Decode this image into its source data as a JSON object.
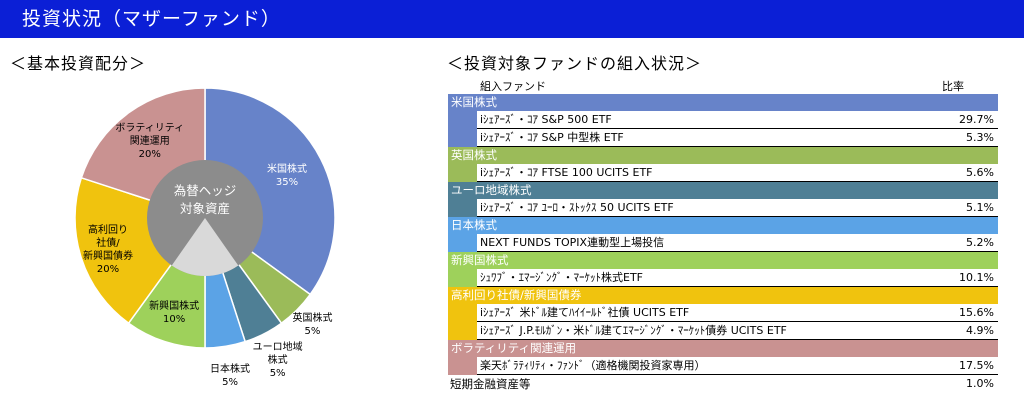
{
  "header": {
    "title": "投資状況（マザーファンド）"
  },
  "left": {
    "title": "＜基本投資配分＞"
  },
  "right": {
    "title": "＜投資対象ファンドの組入状況＞",
    "col_fund": "組入ファンド",
    "col_ratio": "比率"
  },
  "colors": {
    "us": "#6783c9",
    "uk": "#9bbb59",
    "euro": "#4f7f95",
    "japan": "#5ba3e6",
    "emerging": "#9ed15b",
    "highyield": "#f0c30e",
    "volatility": "#c99291",
    "center": "#8c8c8c",
    "center_slice": "#d9d9d9",
    "header": "#0b1fd6"
  },
  "chart_data": {
    "type": "pie",
    "center_label": [
      "為替ヘッジ",
      "対象資産"
    ],
    "slices": [
      {
        "key": "us",
        "lines": [
          "米国株式",
          "35%"
        ],
        "value": 35,
        "color": "#6783c9"
      },
      {
        "key": "uk",
        "lines": [
          "英国株式",
          "5%"
        ],
        "value": 5,
        "color": "#9bbb59"
      },
      {
        "key": "euro",
        "lines": [
          "ユーロ地域",
          "株式",
          "5%"
        ],
        "value": 5,
        "color": "#4f7f95"
      },
      {
        "key": "japan",
        "lines": [
          "日本株式",
          "5%"
        ],
        "value": 5,
        "color": "#5ba3e6"
      },
      {
        "key": "emerging",
        "lines": [
          "新興国株式",
          "10%"
        ],
        "value": 10,
        "color": "#9ed15b"
      },
      {
        "key": "highyield",
        "lines": [
          "高利回り",
          "社債/",
          "新興国債券",
          "20%"
        ],
        "value": 20,
        "color": "#f0c30e"
      },
      {
        "key": "volatility",
        "lines": [
          "ボラティリティ",
          "関連運用",
          "20%"
        ],
        "value": 20,
        "color": "#c99291"
      }
    ]
  },
  "table": {
    "categories": [
      {
        "label": "米国株式",
        "color": "#6783c9",
        "funds": [
          {
            "name": "iｼｪｱｰｽﾞ・ｺｱ S&P 500 ETF",
            "ratio": "29.7%"
          },
          {
            "name": "iｼｪｱｰｽﾞ・ｺｱ S&P 中型株 ETF",
            "ratio": "5.3%"
          }
        ]
      },
      {
        "label": "英国株式",
        "color": "#9bbb59",
        "funds": [
          {
            "name": "iｼｪｱｰｽﾞ・ｺｱ FTSE 100 UCITS ETF",
            "ratio": "5.6%"
          }
        ]
      },
      {
        "label": "ユーロ地域株式",
        "color": "#4f7f95",
        "funds": [
          {
            "name": "iｼｪｱｰｽﾞ・ｺｱ ﾕｰﾛ・ｽﾄｯｸｽ 50 UCITS ETF",
            "ratio": "5.1%"
          }
        ]
      },
      {
        "label": "日本株式",
        "color": "#5ba3e6",
        "funds": [
          {
            "name": "NEXT FUNDS TOPIX連動型上場投信",
            "ratio": "5.2%"
          }
        ]
      },
      {
        "label": "新興国株式",
        "color": "#9ed15b",
        "funds": [
          {
            "name": "ｼｭﾜﾌﾞ・ｴﾏｰｼﾞﾝｸﾞ・ﾏｰｹｯﾄ株式ETF",
            "ratio": "10.1%"
          }
        ]
      },
      {
        "label": "高利回り社債/新興国債券",
        "color": "#f0c30e",
        "funds": [
          {
            "name": "iｼｪｱｰｽﾞ 米ﾄﾞﾙ建てﾊｲｲｰﾙﾄﾞ社債 UCITS ETF",
            "ratio": "15.6%"
          },
          {
            "name": "iｼｪｱｰｽﾞ J.P.ﾓﾙｶﾞﾝ・米ﾄﾞﾙ建てｴﾏｰｼﾞﾝｸﾞ・ﾏｰｹｯﾄ債券 UCITS ETF",
            "ratio": "4.9%"
          }
        ]
      },
      {
        "label": "ボラティリティ関連運用",
        "color": "#c99291",
        "funds": [
          {
            "name": "楽天ﾎﾞﾗﾃｨﾘﾃｨ・ﾌｧﾝﾄﾞ（適格機関投資家専用）",
            "ratio": "17.5%"
          }
        ]
      }
    ],
    "short_term": {
      "name": "短期金融資産等",
      "ratio": "1.0%"
    }
  }
}
